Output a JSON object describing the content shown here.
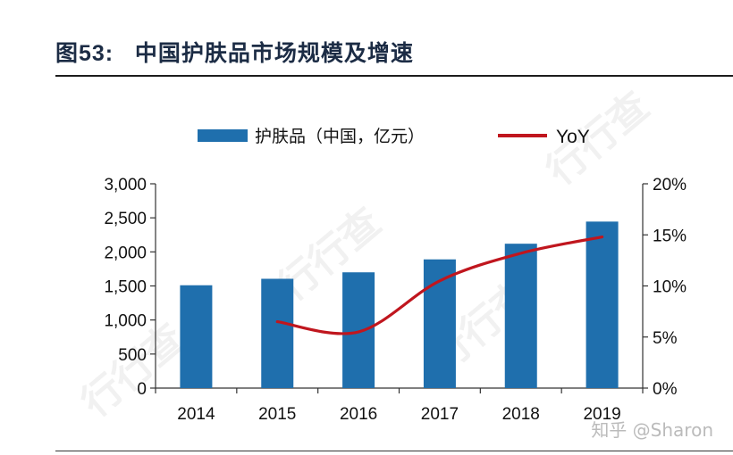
{
  "figure": {
    "label": "图53:",
    "title": "中国护肤品市场规模及增速"
  },
  "watermark": "知乎 @Sharon",
  "background_marks": [
    "行行查",
    "行行查",
    "行行查",
    "行行查"
  ],
  "colors": {
    "bar": "#1f6fad",
    "line": "#c0161e",
    "title": "#1c2c45"
  },
  "chart_data": {
    "type": "bar",
    "categories": [
      "2014",
      "2015",
      "2016",
      "2017",
      "2018",
      "2019"
    ],
    "series": [
      {
        "name": "护肤品（中国，亿元）",
        "type": "bar",
        "axis": "left",
        "values": [
          1510,
          1605,
          1700,
          1890,
          2120,
          2445
        ]
      },
      {
        "name": "YoY",
        "type": "line",
        "axis": "right",
        "values": [
          null,
          6.5,
          5.5,
          10.5,
          13.2,
          14.8
        ]
      }
    ],
    "y_left": {
      "min": 0,
      "max": 3000,
      "step": 500,
      "tick_labels": [
        "0",
        "500",
        "1,000",
        "1,500",
        "2,000",
        "2,500",
        "3,000"
      ]
    },
    "y_right": {
      "min": 0,
      "max": 20,
      "step": 5,
      "tick_labels": [
        "0%",
        "5%",
        "10%",
        "15%",
        "20%"
      ]
    },
    "legend": {
      "position": "top-center"
    },
    "grid": false
  }
}
